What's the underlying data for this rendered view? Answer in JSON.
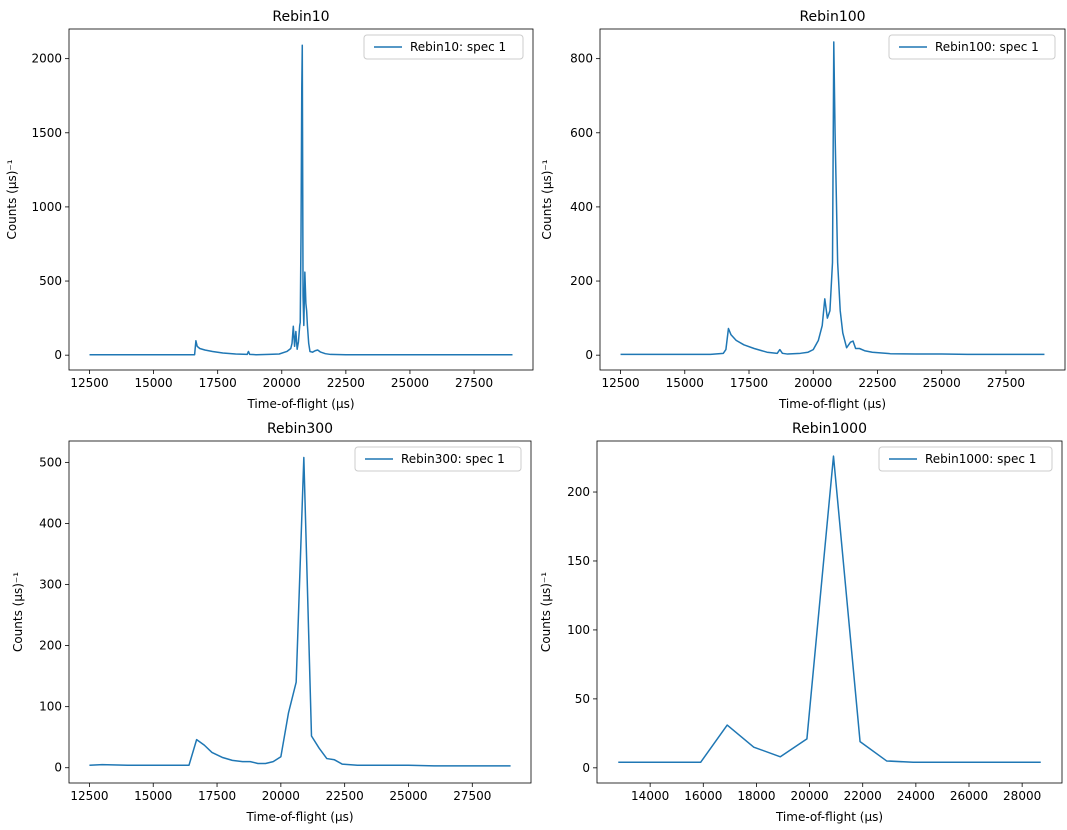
{
  "chart_data": [
    {
      "type": "line",
      "title": "Rebin10",
      "xlabel": "Time-of-flight (μs)",
      "ylabel": "Counts (μs)⁻¹",
      "xlim": [
        11700,
        29800
      ],
      "ylim": [
        -100,
        2200
      ],
      "xticks": [
        12500,
        15000,
        17500,
        20000,
        22500,
        25000,
        27500
      ],
      "xtick_labels": [
        "12500",
        "15000",
        "17500",
        "20000",
        "22500",
        "25000",
        "27500"
      ],
      "yticks": [
        0,
        500,
        1000,
        1500,
        2000
      ],
      "ytick_labels": [
        "0",
        "500",
        "1000",
        "1500",
        "2000"
      ],
      "legend": "top-right",
      "series": [
        {
          "name": "Rebin10: spec 1",
          "color": "#1f77b4",
          "x": [
            12500,
            14000,
            15500,
            16600,
            16650,
            16700,
            16800,
            17000,
            17300,
            17700,
            18200,
            18650,
            18700,
            18750,
            19000,
            19500,
            19900,
            20200,
            20350,
            20400,
            20450,
            20500,
            20550,
            20600,
            20650,
            20700,
            20720,
            20750,
            20780,
            20800,
            20830,
            20860,
            20900,
            20940,
            20970,
            21000,
            21050,
            21100,
            21200,
            21300,
            21400,
            21500,
            21700,
            21900,
            22500,
            23500,
            25000,
            27500,
            29000
          ],
          "y": [
            3,
            3,
            3,
            3,
            97,
            60,
            45,
            35,
            25,
            15,
            8,
            5,
            25,
            5,
            3,
            5,
            8,
            25,
            45,
            80,
            195,
            60,
            160,
            40,
            90,
            200,
            220,
            800,
            1800,
            2090,
            400,
            200,
            560,
            350,
            300,
            200,
            80,
            25,
            20,
            30,
            35,
            22,
            10,
            5,
            3,
            3,
            3,
            3,
            3
          ]
        }
      ]
    },
    {
      "type": "line",
      "title": "Rebin100",
      "xlabel": "Time-of-flight (μs)",
      "ylabel": "Counts (μs)⁻¹",
      "xlim": [
        11700,
        29800
      ],
      "ylim": [
        -40,
        880
      ],
      "xticks": [
        12500,
        15000,
        17500,
        20000,
        22500,
        25000,
        27500
      ],
      "xtick_labels": [
        "12500",
        "15000",
        "17500",
        "20000",
        "22500",
        "25000",
        "27500"
      ],
      "yticks": [
        0,
        200,
        400,
        600,
        800
      ],
      "ytick_labels": [
        "0",
        "200",
        "400",
        "600",
        "800"
      ],
      "legend": "top-right",
      "series": [
        {
          "name": "Rebin100: spec 1",
          "color": "#1f77b4",
          "x": [
            12500,
            13500,
            15000,
            16000,
            16500,
            16600,
            16700,
            16800,
            17000,
            17300,
            17700,
            18200,
            18600,
            18700,
            18800,
            19000,
            19500,
            19800,
            20000,
            20200,
            20350,
            20450,
            20550,
            20650,
            20750,
            20800,
            20850,
            20950,
            21050,
            21150,
            21300,
            21450,
            21550,
            21650,
            21800,
            22000,
            22300,
            23000,
            24000,
            25000,
            26000,
            27000,
            28000,
            29000
          ],
          "y": [
            2,
            2,
            2,
            2,
            5,
            15,
            72,
            55,
            40,
            28,
            18,
            8,
            5,
            15,
            5,
            3,
            5,
            8,
            15,
            40,
            80,
            152,
            100,
            120,
            250,
            845,
            600,
            250,
            120,
            60,
            20,
            35,
            38,
            18,
            18,
            12,
            8,
            4,
            3,
            3,
            2,
            2,
            2,
            2
          ]
        }
      ]
    },
    {
      "type": "line",
      "title": "Rebin300",
      "xlabel": "Time-of-flight (μs)",
      "ylabel": "Counts (μs)⁻¹",
      "xlim": [
        11700,
        29800
      ],
      "ylim": [
        -25,
        535
      ],
      "xticks": [
        12500,
        15000,
        17500,
        20000,
        22500,
        25000,
        27500
      ],
      "xtick_labels": [
        "12500",
        "15000",
        "17500",
        "20000",
        "22500",
        "25000",
        "27500"
      ],
      "yticks": [
        0,
        100,
        200,
        300,
        400,
        500
      ],
      "ytick_labels": [
        "0",
        "100",
        "200",
        "300",
        "400",
        "500"
      ],
      "legend": "top-right",
      "series": [
        {
          "name": "Rebin300: spec 1",
          "color": "#1f77b4",
          "x": [
            12500,
            13000,
            14000,
            15000,
            16000,
            16400,
            16700,
            17000,
            17300,
            17700,
            18100,
            18500,
            18800,
            19100,
            19400,
            19700,
            20000,
            20300,
            20600,
            20900,
            21200,
            21500,
            21800,
            22100,
            22400,
            23000,
            24000,
            25000,
            26000,
            27000,
            28000,
            29000
          ],
          "y": [
            4,
            5,
            4,
            4,
            4,
            4,
            46,
            37,
            25,
            17,
            12,
            10,
            10,
            7,
            7,
            10,
            18,
            90,
            140,
            508,
            52,
            32,
            15,
            13,
            6,
            4,
            4,
            4,
            3,
            3,
            3,
            3
          ]
        }
      ]
    },
    {
      "type": "line",
      "title": "Rebin1000",
      "xlabel": "Time-of-flight (μs)",
      "ylabel": "Counts (μs)⁻¹",
      "xlim": [
        12000,
        29500
      ],
      "ylim": [
        -11,
        237
      ],
      "xticks": [
        14000,
        16000,
        18000,
        20000,
        22000,
        24000,
        26000,
        28000
      ],
      "xtick_labels": [
        "14000",
        "16000",
        "18000",
        "20000",
        "22000",
        "24000",
        "26000",
        "28000"
      ],
      "yticks": [
        0,
        50,
        100,
        150,
        200
      ],
      "ytick_labels": [
        "0",
        "50",
        "100",
        "150",
        "200"
      ],
      "legend": "top-right",
      "series": [
        {
          "name": "Rebin1000: spec 1",
          "color": "#1f77b4",
          "x": [
            12800,
            13800,
            14800,
            15900,
            16900,
            17900,
            18900,
            19900,
            20900,
            21900,
            22900,
            23900,
            24900,
            25900,
            26900,
            27900,
            28700
          ],
          "y": [
            4,
            4,
            4,
            4,
            31,
            15,
            8,
            21,
            226,
            19,
            5,
            4,
            4,
            4,
            4,
            4,
            4
          ]
        }
      ]
    }
  ]
}
